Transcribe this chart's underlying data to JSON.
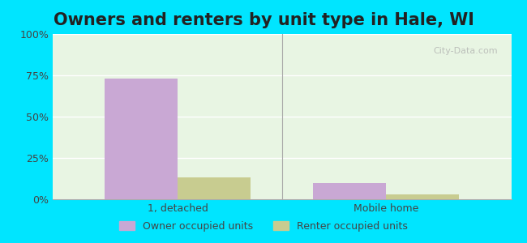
{
  "title": "Owners and renters by unit type in Hale, WI",
  "categories": [
    "1, detached",
    "Mobile home"
  ],
  "owner_values": [
    73,
    10
  ],
  "renter_values": [
    13,
    3
  ],
  "owner_color": "#c9a8d4",
  "renter_color": "#c8cc90",
  "owner_label": "Owner occupied units",
  "renter_label": "Renter occupied units",
  "ylim": [
    0,
    100
  ],
  "yticks": [
    0,
    25,
    50,
    75,
    100
  ],
  "ytick_labels": [
    "0%",
    "25%",
    "50%",
    "75%",
    "100%"
  ],
  "background_color": "#e8f5e3",
  "outer_background": "#00e5ff",
  "bar_width": 0.35,
  "watermark": "City-Data.com",
  "title_fontsize": 15,
  "tick_fontsize": 9,
  "legend_fontsize": 9
}
